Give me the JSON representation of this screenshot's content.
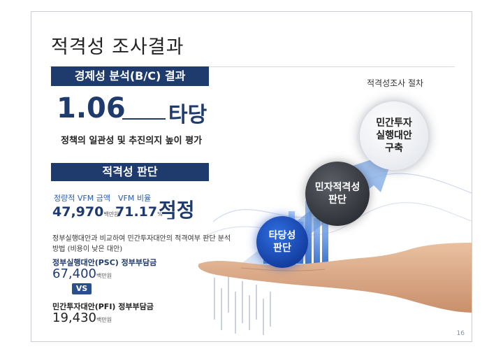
{
  "title": "적격성 조사결과",
  "bc": {
    "banner": "경제성 분석(B/C) 결과",
    "ratio": "1.06",
    "verdict": "타당",
    "note": "정책의 일관성 및 추진의지 높이 평가"
  },
  "suitability": {
    "banner": "적격성 판단",
    "vfm_amount_label": "정량적 VFM 금액",
    "vfm_ratio_label": "VFM 비율",
    "vfm_amount": "47,970",
    "vfm_amount_unit": "백만원",
    "vfm_ratio": "71.17",
    "vfm_ratio_unit": "%",
    "separator": "_",
    "verdict": "적정",
    "comparison_note": "정부실행대안과 비교하여 민간투자대안의 적격여부 판단 분석 방법 (비용이 낮은 대안)",
    "psc_label": "정부실행대안(PSC) 정부부담금",
    "psc_value": "67,400",
    "psc_unit": "백만원",
    "vs": "VS",
    "pfi_label": "민간투자대안(PFI) 정부부담금",
    "pfi_value": "19,430",
    "pfi_unit": "백만원"
  },
  "procedure": {
    "label": "적격성조사 절차",
    "steps": [
      "타당성\n판단",
      "민자적격성\n판단",
      "민간투자\n실행대안\n구축"
    ]
  },
  "page_number": "16",
  "colors": {
    "navy": "#1f3b6e",
    "accent_blue": "#2a5ba8"
  }
}
